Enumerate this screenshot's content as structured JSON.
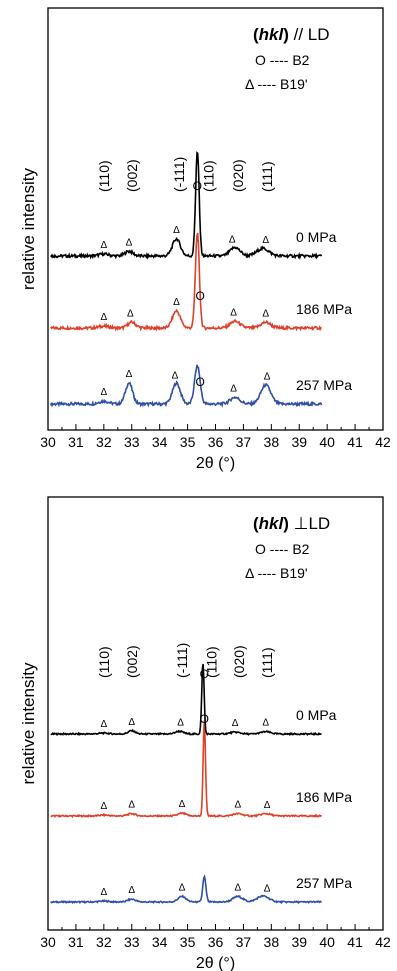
{
  "chart_data": [
    {
      "type": "line",
      "xlabel": "2θ (°)",
      "ylabel": "relative intensity",
      "xlim": [
        30,
        42
      ],
      "xticks": [
        30,
        31,
        32,
        33,
        34,
        35,
        36,
        37,
        38,
        39,
        40,
        41,
        42
      ],
      "legend": {
        "title_italic": "hkl",
        "title_rest": " // LD",
        "entries": [
          {
            "symbol": "O",
            "label": "---- B2"
          },
          {
            "symbol": "Δ",
            "label": "---- B19'"
          }
        ]
      },
      "peak_labels": [
        {
          "text": "(110)",
          "x": 32.0
        },
        {
          "text": "(002)",
          "x": 33.0
        },
        {
          "text": "(-111)",
          "x": 34.7
        },
        {
          "text": "(110)",
          "x": 35.75
        },
        {
          "text": "(020)",
          "x": 36.8
        },
        {
          "text": "(111)",
          "x": 37.85
        }
      ],
      "o_label": {
        "symbol": "O",
        "x": 35.35
      },
      "series": [
        {
          "name": "257 MPa",
          "color": "#2f4fa8",
          "offset": 2.0,
          "peaks": [
            [
              32.0,
              0.03,
              0.25
            ],
            [
              32.9,
              0.22,
              0.18
            ],
            [
              34.6,
              0.22,
              0.2
            ],
            [
              35.35,
              0.4,
              0.14
            ],
            [
              36.7,
              0.07,
              0.25
            ],
            [
              37.8,
              0.2,
              0.25
            ]
          ],
          "triangles": [
            32.0,
            32.9,
            34.55,
            36.65,
            37.85
          ],
          "circle": 35.45
        },
        {
          "name": "186 MPa",
          "color": "#e0402a",
          "offset": 1.0,
          "peaks": [
            [
              32.0,
              0.02,
              0.25
            ],
            [
              33.0,
              0.06,
              0.2
            ],
            [
              34.6,
              0.18,
              0.2
            ],
            [
              35.35,
              1.0,
              0.1
            ],
            [
              36.7,
              0.07,
              0.25
            ],
            [
              37.8,
              0.06,
              0.25
            ]
          ],
          "triangles": [
            32.0,
            32.95,
            34.6,
            36.65,
            37.8
          ],
          "circle": 35.45
        },
        {
          "name": "0 MPa",
          "color": "#000000",
          "offset": 0.0,
          "peaks": [
            [
              32.0,
              0.02,
              0.25
            ],
            [
              32.9,
              0.05,
              0.2
            ],
            [
              34.6,
              0.18,
              0.2
            ],
            [
              35.35,
              1.1,
              0.09
            ],
            [
              36.7,
              0.09,
              0.25
            ],
            [
              37.7,
              0.08,
              0.3
            ]
          ],
          "triangles": [
            32.0,
            32.9,
            34.6,
            36.6,
            37.8
          ],
          "circle": null
        }
      ]
    },
    {
      "type": "line",
      "xlabel": "2θ (°)",
      "ylabel": "relative intensity",
      "xlim": [
        30,
        42
      ],
      "xticks": [
        30,
        31,
        32,
        33,
        34,
        35,
        36,
        37,
        38,
        39,
        40,
        41,
        42
      ],
      "legend": {
        "title_italic": "hkl",
        "title_rest": " ⊥LD",
        "entries": [
          {
            "symbol": "O",
            "label": "---- B2"
          },
          {
            "symbol": "Δ",
            "label": "---- B19'"
          }
        ]
      },
      "peak_labels": [
        {
          "text": "(110)",
          "x": 32.0
        },
        {
          "text": "(002)",
          "x": 33.0
        },
        {
          "text": "(-111)",
          "x": 34.8
        },
        {
          "text": "(110)",
          "x": 35.85
        },
        {
          "text": "(020)",
          "x": 36.85
        },
        {
          "text": "(111)",
          "x": 37.85
        }
      ],
      "o_label": {
        "symbol": "O",
        "x": 35.6
      },
      "series": [
        {
          "name": "257 MPa",
          "color": "#2f4fa8",
          "offset": 2.0,
          "peaks": [
            [
              32.0,
              0.02,
              0.25
            ],
            [
              33.0,
              0.06,
              0.2
            ],
            [
              34.8,
              0.12,
              0.2
            ],
            [
              35.6,
              0.55,
              0.08
            ],
            [
              36.8,
              0.12,
              0.25
            ],
            [
              37.7,
              0.13,
              0.3
            ]
          ],
          "triangles": [
            32.0,
            33.0,
            34.8,
            36.8,
            37.85
          ],
          "circle": null
        },
        {
          "name": "186 MPa",
          "color": "#e0402a",
          "offset": 1.0,
          "peaks": [
            [
              32.0,
              0.02,
              0.25
            ],
            [
              33.0,
              0.05,
              0.2
            ],
            [
              34.8,
              0.06,
              0.2
            ],
            [
              35.6,
              2.1,
              0.06
            ],
            [
              36.8,
              0.05,
              0.25
            ],
            [
              37.8,
              0.05,
              0.25
            ]
          ],
          "triangles": [
            32.0,
            33.0,
            34.8,
            36.8,
            37.85
          ],
          "circle": null
        },
        {
          "name": "0 MPa",
          "color": "#000000",
          "offset": 0.0,
          "peaks": [
            [
              32.0,
              0.02,
              0.25
            ],
            [
              33.0,
              0.07,
              0.18
            ],
            [
              34.7,
              0.06,
              0.2
            ],
            [
              35.55,
              1.55,
              0.06
            ],
            [
              36.7,
              0.04,
              0.25
            ],
            [
              37.8,
              0.05,
              0.25
            ]
          ],
          "triangles": [
            32.0,
            33.0,
            34.75,
            36.7,
            37.8
          ],
          "circle": 35.6
        }
      ]
    }
  ]
}
